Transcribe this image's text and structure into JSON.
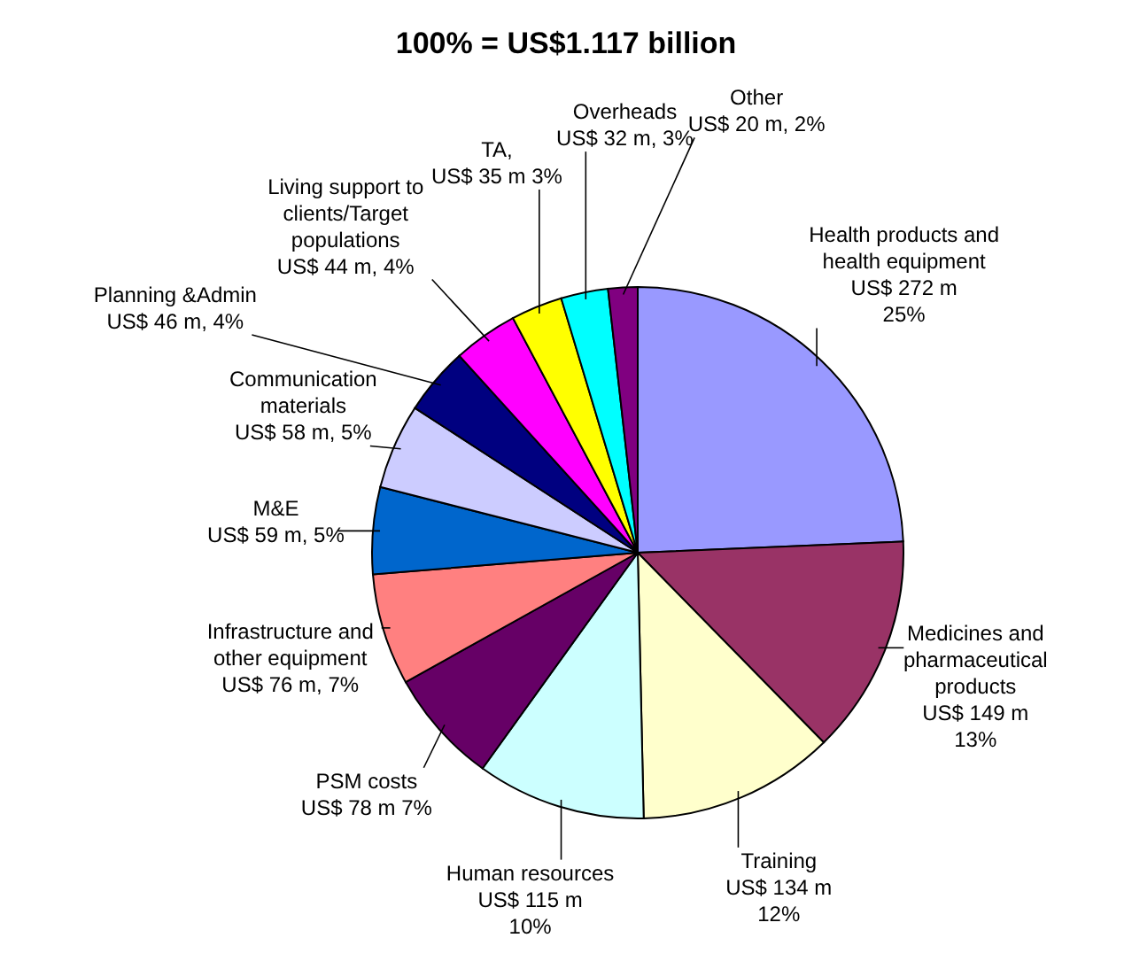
{
  "chart_data": {
    "type": "pie",
    "title": "100% = US$1.117 billion",
    "categories": [
      "Health products and health equipment",
      "Medicines and pharmaceutical products",
      "Training",
      "Human resources",
      "PSM costs",
      "Infrastructure and other equipment",
      "M&E",
      "Communication materials",
      "Planning &Admin",
      "Living support to clients/Target populations",
      "TA",
      "Overheads",
      "Other"
    ],
    "values": [
      272,
      149,
      134,
      115,
      78,
      76,
      59,
      58,
      46,
      44,
      35,
      32,
      20
    ],
    "colors": [
      "#9999ff",
      "#993366",
      "#ffffcc",
      "#ccffff",
      "#660066",
      "#ff8080",
      "#0066cc",
      "#ccccff",
      "#000080",
      "#ff00ff",
      "#ffff00",
      "#00ffff",
      "#800080"
    ],
    "value_labels": [
      "US$ 272 m 25%",
      "US$ 149 m 13%",
      "US$ 134 m 12%",
      "US$ 115 m 10%",
      "US$ 78 m 7%",
      "US$ 76 m, 7%",
      "US$ 59 m, 5%",
      "US$ 58 m, 5%",
      "US$ 46 m, 4%",
      "US$ 44 m, 4%",
      ", US$ 35 m 3%",
      "US$ 32 m, 3%",
      "US$ 20 m, 2%"
    ]
  }
}
